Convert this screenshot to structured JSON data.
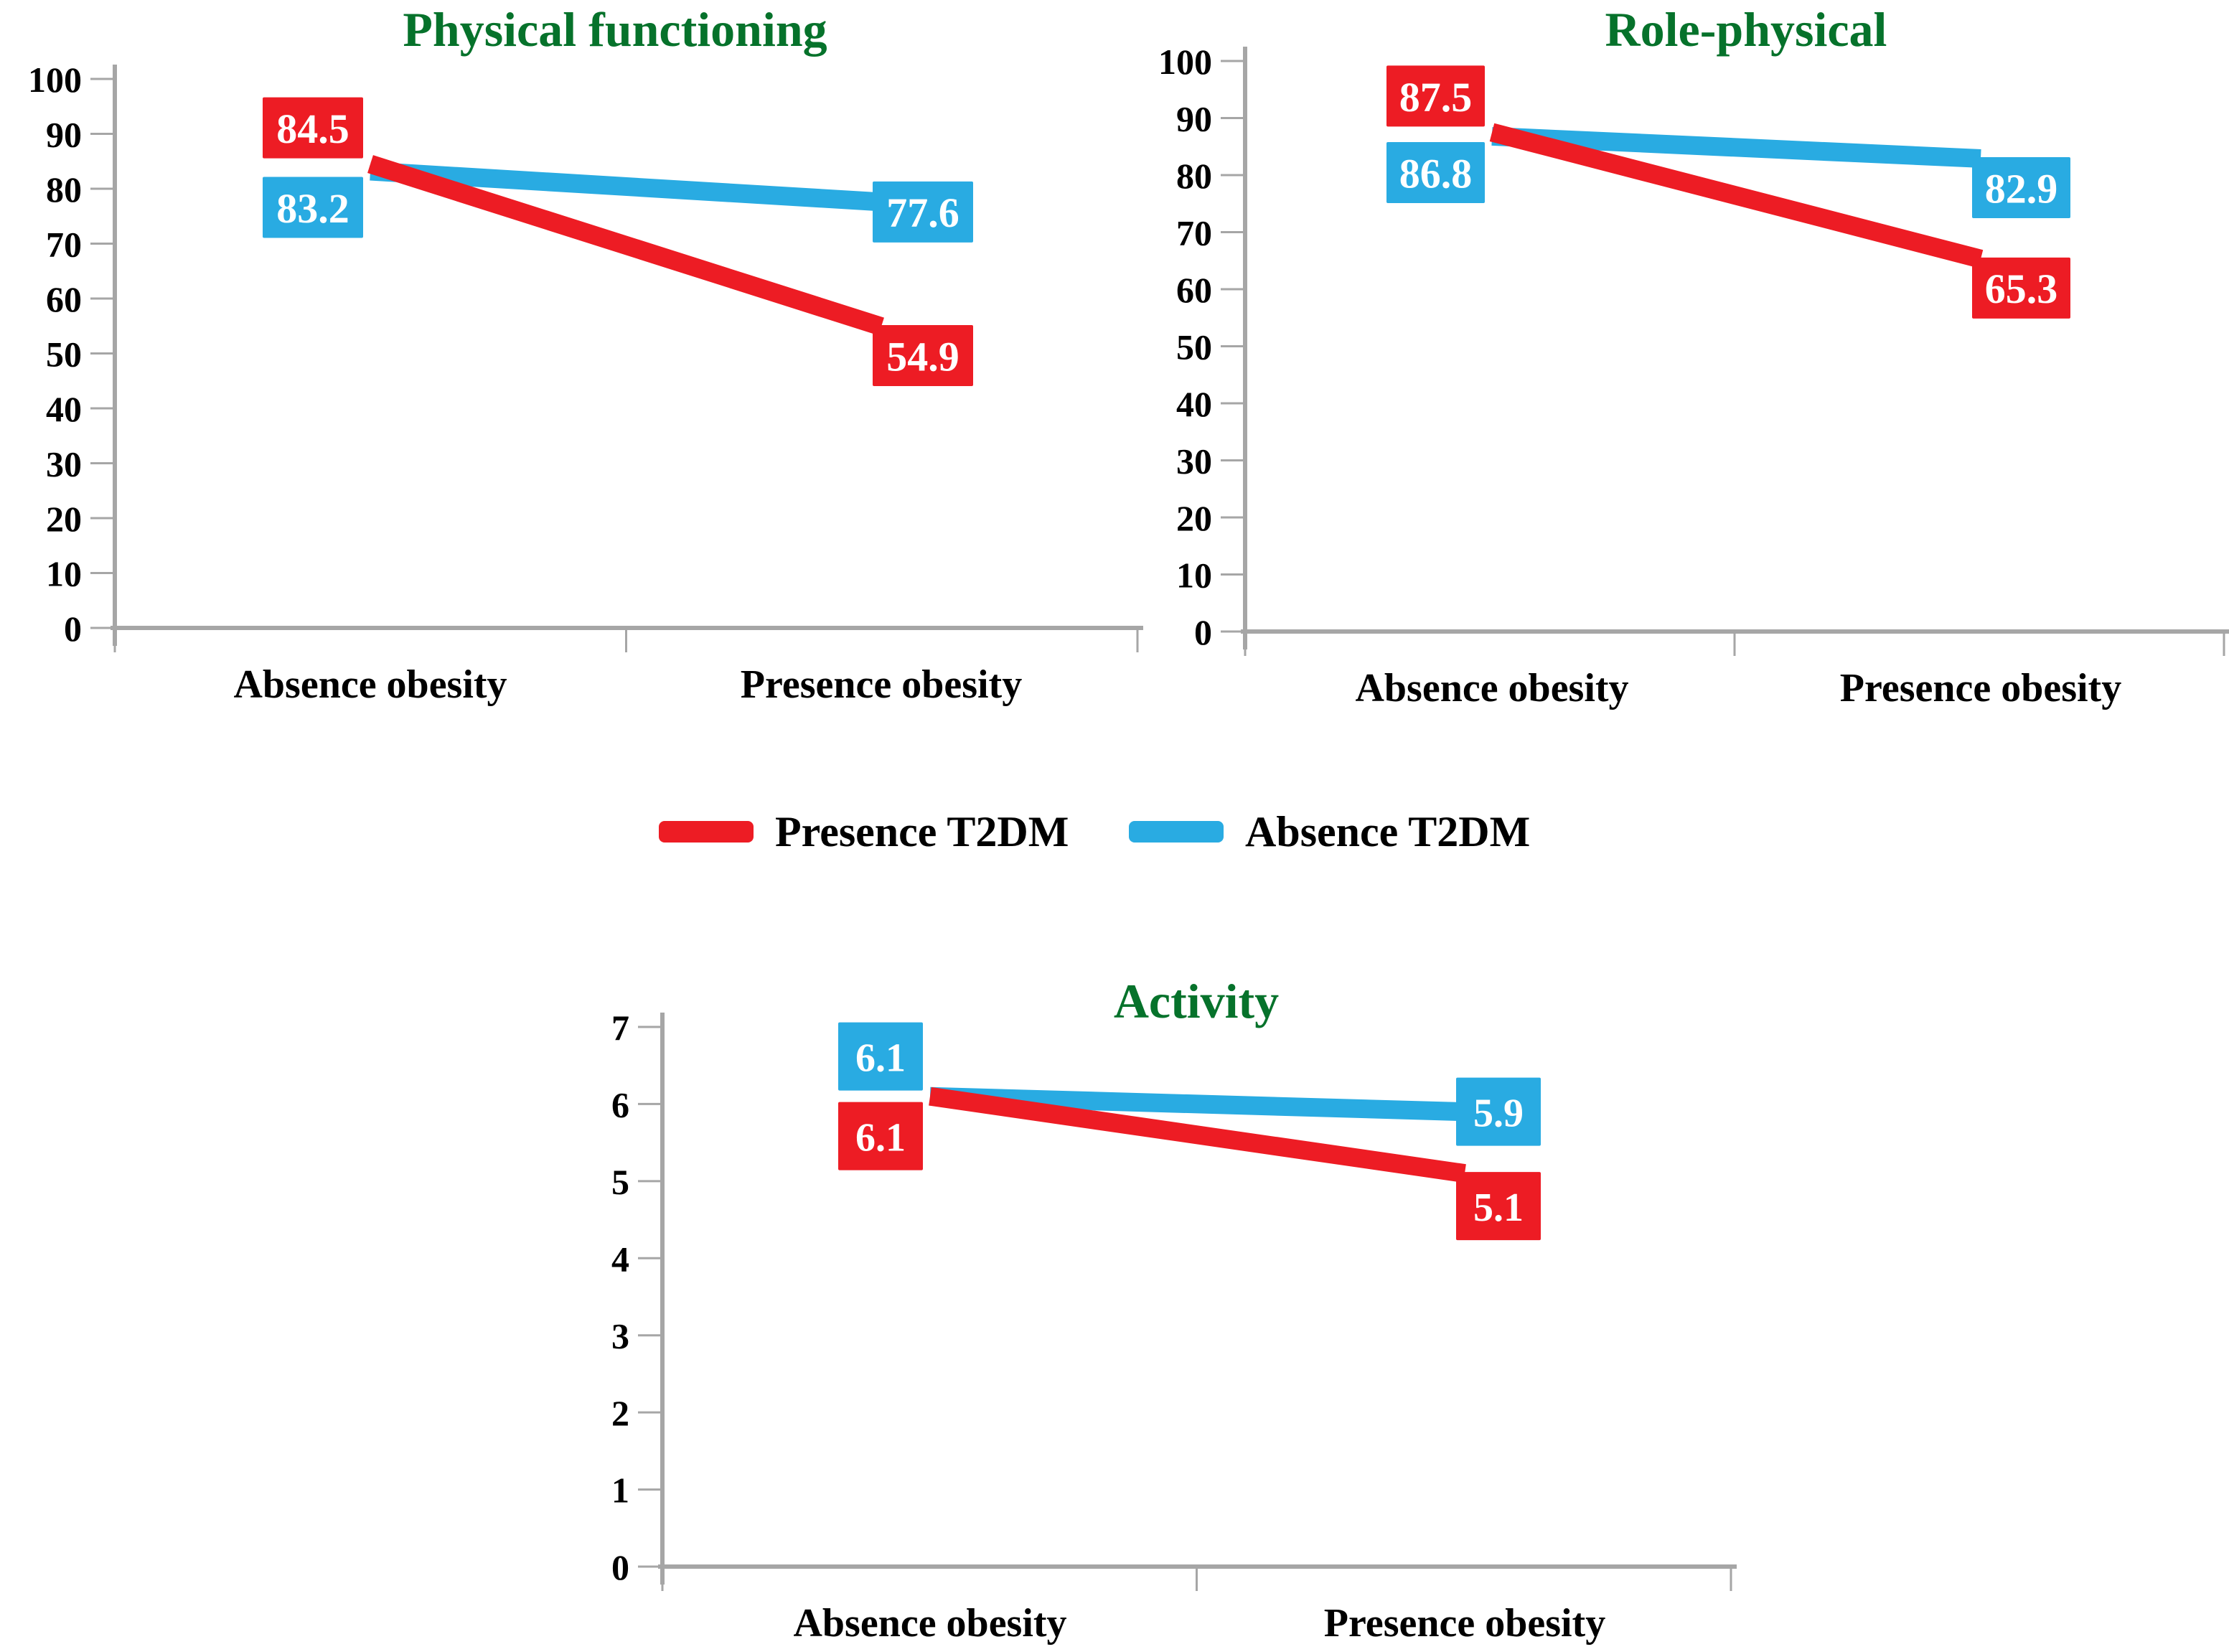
{
  "colors": {
    "title_green": "#06722B",
    "axis_gray": "#A6A6A6",
    "series_red": "#ED1C24",
    "series_blue": "#29ABE2",
    "data_label_text": "#FFFFFF"
  },
  "legend": {
    "items": [
      {
        "label": "Presence T2DM",
        "color": "#ED1C24"
      },
      {
        "label": "Absence T2DM",
        "color": "#29ABE2"
      }
    ]
  },
  "chart_data": [
    {
      "type": "line",
      "title": "Physical functioning",
      "categories": [
        "Absence obesity",
        "Presence obesity"
      ],
      "series": [
        {
          "name": "Presence T2DM",
          "color": "#ED1C24",
          "values": [
            84.5,
            54.9
          ]
        },
        {
          "name": "Absence T2DM",
          "color": "#29ABE2",
          "values": [
            83.2,
            77.6
          ]
        }
      ],
      "ylim": [
        0,
        100
      ],
      "ystep": 10,
      "xlabel": "",
      "ylabel": "",
      "grid": false,
      "data_labels": true,
      "legend_position": "shared-below"
    },
    {
      "type": "line",
      "title": "Role-physical",
      "categories": [
        "Absence obesity",
        "Presence obesity"
      ],
      "series": [
        {
          "name": "Presence T2DM",
          "color": "#ED1C24",
          "values": [
            87.5,
            65.3
          ]
        },
        {
          "name": "Absence T2DM",
          "color": "#29ABE2",
          "values": [
            86.8,
            82.9
          ]
        }
      ],
      "ylim": [
        0,
        100
      ],
      "ystep": 10,
      "xlabel": "",
      "ylabel": "",
      "grid": false,
      "data_labels": true,
      "legend_position": "shared-below"
    },
    {
      "type": "line",
      "title": "Activity",
      "categories": [
        "Absence obesity",
        "Presence obesity"
      ],
      "series": [
        {
          "name": "Presence T2DM",
          "color": "#ED1C24",
          "values": [
            6.1,
            5.1
          ]
        },
        {
          "name": "Absence T2DM",
          "color": "#29ABE2",
          "values": [
            6.1,
            5.9
          ]
        }
      ],
      "ylim": [
        0,
        7
      ],
      "ystep": 1,
      "xlabel": "",
      "ylabel": "",
      "grid": false,
      "data_labels": true,
      "legend_position": "shared-below"
    }
  ]
}
